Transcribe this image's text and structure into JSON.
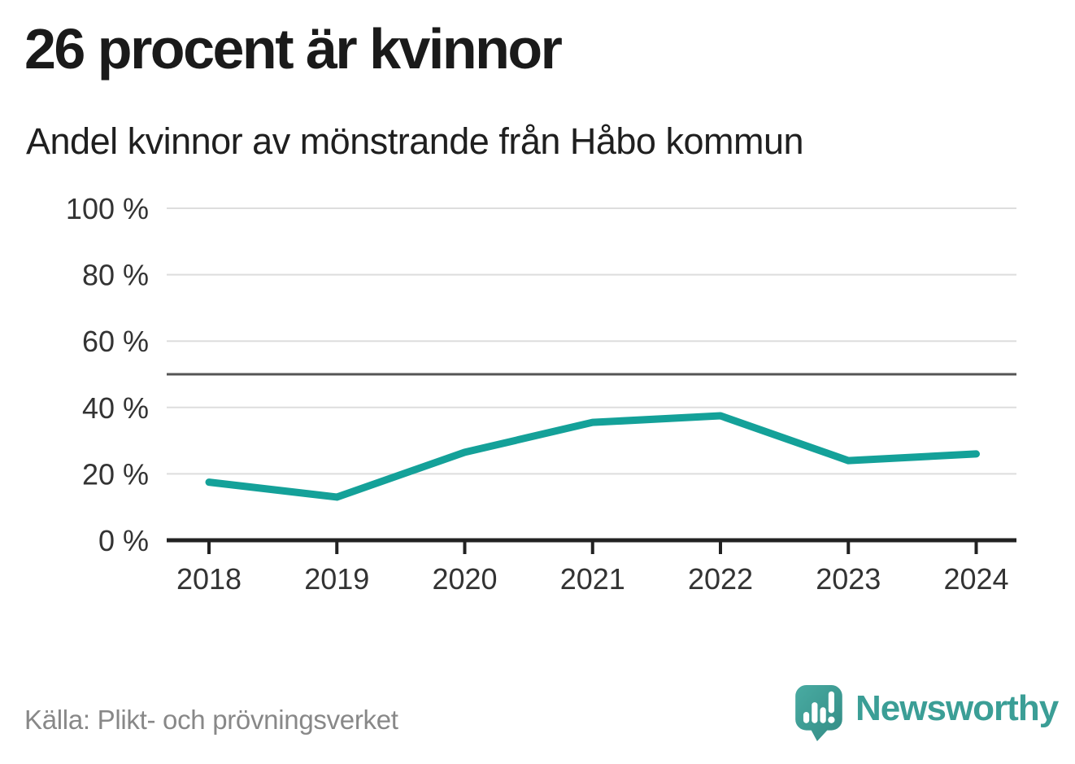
{
  "chart_data": {
    "type": "line",
    "title": "26 procent är kvinnor",
    "subtitle": "Andel kvinnor av mönstrande från Håbo kommun",
    "x": [
      2018,
      2019,
      2020,
      2021,
      2022,
      2023,
      2024
    ],
    "series": [
      {
        "name": "Andel kvinnor av mönstrande",
        "values": [
          17.5,
          13,
          26.5,
          35.5,
          37.5,
          24,
          26
        ]
      }
    ],
    "xlabel": "",
    "ylabel": "",
    "ylim": [
      0,
      100
    ],
    "yticks": [
      0,
      20,
      40,
      60,
      80,
      100
    ],
    "ytick_suffix": " %",
    "reference_line": 50,
    "grid": true,
    "legend_position": "none",
    "line_color": "#14a199"
  },
  "footer": {
    "source": "Källa: Plikt- och prövningsverket",
    "brand": "Newsworthy"
  },
  "colors": {
    "accent_teal": "#14a199",
    "brand_teal": "#3b9e96",
    "logo_teal": "#40a39b",
    "gridline": "#dddddd",
    "reference_line": "#555555",
    "axis": "#222222",
    "tick_label": "#333333",
    "title_text": "#1a1a1a",
    "source_text": "#888888",
    "background": "#ffffff"
  },
  "icons": {
    "logo": "newsworthy-speech-bubble-barchart-icon"
  }
}
